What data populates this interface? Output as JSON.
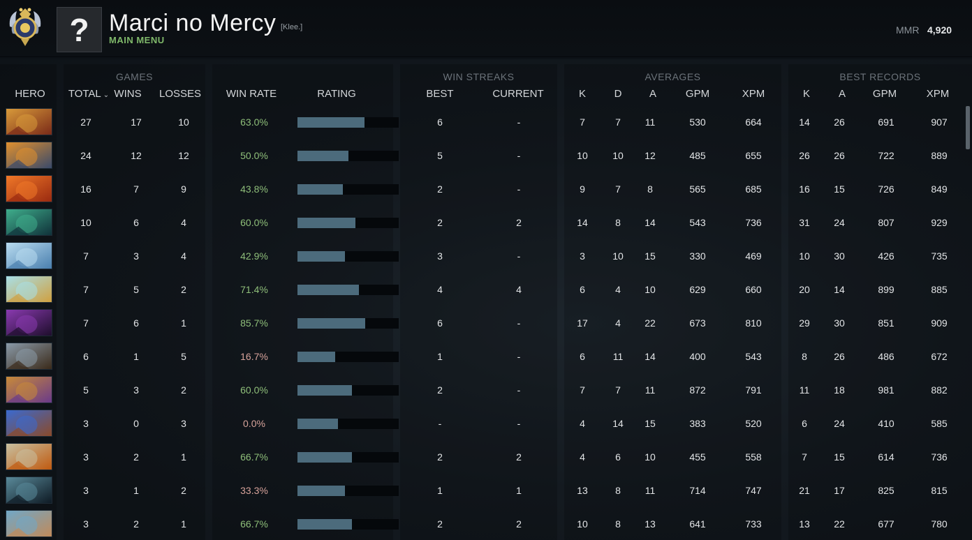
{
  "header": {
    "player_name": "Marci no Mercy",
    "player_tag": "[Klee.]",
    "menu_label": "MAIN MENU",
    "avatar_glyph": "?",
    "mmr_label": "MMR",
    "mmr_value": "4,920",
    "rank_icon": "immortal-rank-medal-icon"
  },
  "groups": {
    "games": "GAMES",
    "win_streaks": "WIN STREAKS",
    "averages": "AVERAGES",
    "best_records": "BEST RECORDS"
  },
  "columns": {
    "hero": "HERO",
    "total": "TOTAL",
    "wins": "WINS",
    "losses": "LOSSES",
    "win_rate": "WIN RATE",
    "rating": "RATING",
    "best": "BEST",
    "current": "CURRENT",
    "avg_k": "K",
    "avg_d": "D",
    "avg_a": "A",
    "avg_gpm": "GPM",
    "avg_xpm": "XPM",
    "best_k": "K",
    "best_a": "A",
    "best_gpm": "GPM",
    "best_xpm": "XPM"
  },
  "rows": [
    {
      "total": "27",
      "wins": "17",
      "losses": "10",
      "win_rate": "63.0%",
      "rating": 0.66,
      "best": "6",
      "current": "-",
      "k": "7",
      "d": "7",
      "a": "11",
      "gpm": "530",
      "xpm": "664",
      "bk": "14",
      "ba": "26",
      "bgpm": "691",
      "bxpm": "907",
      "low": false
    },
    {
      "total": "24",
      "wins": "12",
      "losses": "12",
      "win_rate": "50.0%",
      "rating": 0.5,
      "best": "5",
      "current": "-",
      "k": "10",
      "d": "10",
      "a": "12",
      "gpm": "485",
      "xpm": "655",
      "bk": "26",
      "ba": "26",
      "bgpm": "722",
      "bxpm": "889",
      "low": false
    },
    {
      "total": "16",
      "wins": "7",
      "losses": "9",
      "win_rate": "43.8%",
      "rating": 0.45,
      "best": "2",
      "current": "-",
      "k": "9",
      "d": "7",
      "a": "8",
      "gpm": "565",
      "xpm": "685",
      "bk": "16",
      "ba": "15",
      "bgpm": "726",
      "bxpm": "849",
      "low": false
    },
    {
      "total": "10",
      "wins": "6",
      "losses": "4",
      "win_rate": "60.0%",
      "rating": 0.57,
      "best": "2",
      "current": "2",
      "k": "14",
      "d": "8",
      "a": "14",
      "gpm": "543",
      "xpm": "736",
      "bk": "31",
      "ba": "24",
      "bgpm": "807",
      "bxpm": "929",
      "low": false
    },
    {
      "total": "7",
      "wins": "3",
      "losses": "4",
      "win_rate": "42.9%",
      "rating": 0.47,
      "best": "3",
      "current": "-",
      "k": "3",
      "d": "10",
      "a": "15",
      "gpm": "330",
      "xpm": "469",
      "bk": "10",
      "ba": "30",
      "bgpm": "426",
      "bxpm": "735",
      "low": false
    },
    {
      "total": "7",
      "wins": "5",
      "losses": "2",
      "win_rate": "71.4%",
      "rating": 0.61,
      "best": "4",
      "current": "4",
      "k": "6",
      "d": "4",
      "a": "10",
      "gpm": "629",
      "xpm": "660",
      "bk": "20",
      "ba": "14",
      "bgpm": "899",
      "bxpm": "885",
      "low": false
    },
    {
      "total": "7",
      "wins": "6",
      "losses": "1",
      "win_rate": "85.7%",
      "rating": 0.67,
      "best": "6",
      "current": "-",
      "k": "17",
      "d": "4",
      "a": "22",
      "gpm": "673",
      "xpm": "810",
      "bk": "29",
      "ba": "30",
      "bgpm": "851",
      "bxpm": "909",
      "low": false
    },
    {
      "total": "6",
      "wins": "1",
      "losses": "5",
      "win_rate": "16.7%",
      "rating": 0.37,
      "best": "1",
      "current": "-",
      "k": "6",
      "d": "11",
      "a": "14",
      "gpm": "400",
      "xpm": "543",
      "bk": "8",
      "ba": "26",
      "bgpm": "486",
      "bxpm": "672",
      "low": true
    },
    {
      "total": "5",
      "wins": "3",
      "losses": "2",
      "win_rate": "60.0%",
      "rating": 0.54,
      "best": "2",
      "current": "-",
      "k": "7",
      "d": "7",
      "a": "11",
      "gpm": "872",
      "xpm": "791",
      "bk": "11",
      "ba": "18",
      "bgpm": "981",
      "bxpm": "882",
      "low": false
    },
    {
      "total": "3",
      "wins": "0",
      "losses": "3",
      "win_rate": "0.0%",
      "rating": 0.4,
      "best": "-",
      "current": "-",
      "k": "4",
      "d": "14",
      "a": "15",
      "gpm": "383",
      "xpm": "520",
      "bk": "6",
      "ba": "24",
      "bgpm": "410",
      "bxpm": "585",
      "low": true
    },
    {
      "total": "3",
      "wins": "2",
      "losses": "1",
      "win_rate": "66.7%",
      "rating": 0.54,
      "best": "2",
      "current": "2",
      "k": "4",
      "d": "6",
      "a": "10",
      "gpm": "455",
      "xpm": "558",
      "bk": "7",
      "ba": "15",
      "bgpm": "614",
      "bxpm": "736",
      "low": false
    },
    {
      "total": "3",
      "wins": "1",
      "losses": "2",
      "win_rate": "33.3%",
      "rating": 0.47,
      "best": "1",
      "current": "1",
      "k": "13",
      "d": "8",
      "a": "11",
      "gpm": "714",
      "xpm": "747",
      "bk": "21",
      "ba": "17",
      "bgpm": "825",
      "bxpm": "815",
      "low": true
    },
    {
      "total": "3",
      "wins": "2",
      "losses": "1",
      "win_rate": "66.7%",
      "rating": 0.54,
      "best": "2",
      "current": "2",
      "k": "10",
      "d": "8",
      "a": "13",
      "gpm": "641",
      "xpm": "733",
      "bk": "13",
      "ba": "22",
      "bgpm": "677",
      "bxpm": "780",
      "low": false
    }
  ],
  "hero_icons": [
    {
      "name": "hero-icon-legion-commander",
      "c1": "#d89a3a",
      "c2": "#7a2a18"
    },
    {
      "name": "hero-icon-monkey-king",
      "c1": "#e0902e",
      "c2": "#3a4a6a"
    },
    {
      "name": "hero-icon-lina",
      "c1": "#f07828",
      "c2": "#9a2a10"
    },
    {
      "name": "hero-icon-medusa",
      "c1": "#3fae8c",
      "c2": "#10323a"
    },
    {
      "name": "hero-icon-crystal-maiden",
      "c1": "#b9dcf0",
      "c2": "#4a7fae"
    },
    {
      "name": "hero-icon-marci",
      "c1": "#a8e0e8",
      "c2": "#d0a040"
    },
    {
      "name": "hero-icon-spectre",
      "c1": "#8a3ab0",
      "c2": "#1e0e2c"
    },
    {
      "name": "hero-icon-tinker",
      "c1": "#8a9aa8",
      "c2": "#3a2a1a"
    },
    {
      "name": "hero-icon-alchemist",
      "c1": "#c88a38",
      "c2": "#6a3a8a"
    },
    {
      "name": "hero-icon-storm-spirit",
      "c1": "#3a6ad0",
      "c2": "#8a4a2a"
    },
    {
      "name": "hero-icon-brewmaster",
      "c1": "#c8c0a0",
      "c2": "#c05a10"
    },
    {
      "name": "hero-icon-phantom-assassin",
      "c1": "#5a8a9a",
      "c2": "#0e1a24"
    },
    {
      "name": "hero-icon-sniper",
      "c1": "#70a8c8",
      "c2": "#c08a5a"
    }
  ]
}
